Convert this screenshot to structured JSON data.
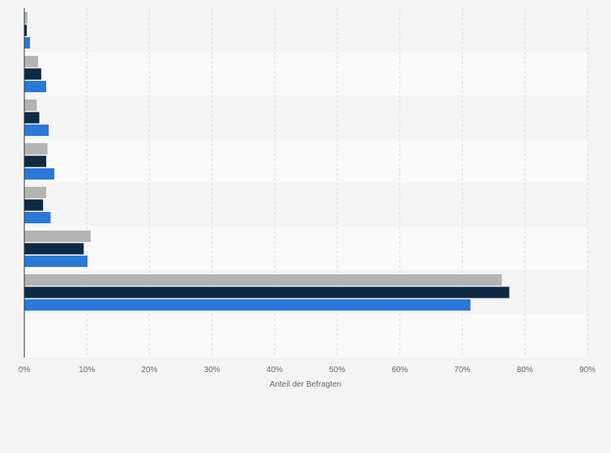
{
  "chart_data": {
    "type": "bar",
    "orientation": "horizontal",
    "xlabel": "Anteil der Befragten",
    "xlim": [
      0,
      90
    ],
    "x_ticks": [
      "0%",
      "10%",
      "20%",
      "30%",
      "40%",
      "50%",
      "60%",
      "70%",
      "80%",
      "90%"
    ],
    "grid": true,
    "categories": [
      "",
      "",
      "",
      "",
      "",
      "",
      "",
      ""
    ],
    "series": [
      {
        "color": "#b3b3b3",
        "values": [
          0.5,
          2.2,
          2.0,
          3.7,
          3.5,
          10.6,
          76.3,
          0.0
        ]
      },
      {
        "color": "#0f2a43",
        "values": [
          0.4,
          2.7,
          2.4,
          3.5,
          3.0,
          9.5,
          77.5,
          0.0
        ]
      },
      {
        "color": "#2a78d8",
        "values": [
          0.9,
          3.5,
          3.9,
          4.8,
          4.2,
          10.1,
          71.3,
          0.0
        ]
      }
    ]
  }
}
